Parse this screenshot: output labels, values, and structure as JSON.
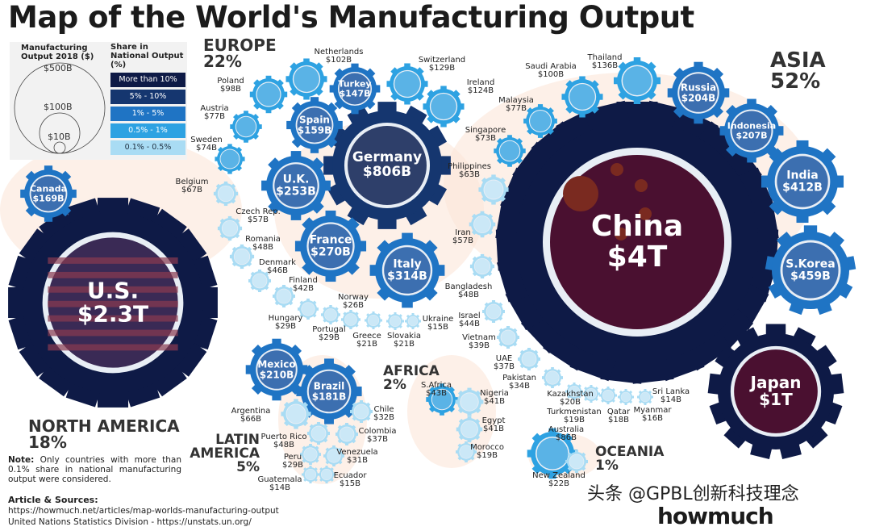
{
  "title": "Map of the World's Manufacturing Output",
  "legend": {
    "size_title": "Manufacturing Output 2018 ($)",
    "size_circles": [
      "$500B",
      "$100B",
      "$10B"
    ],
    "share_title": "Share in National Output (%)",
    "tiers": [
      {
        "label": "More than 10%",
        "color": "#0e1a46"
      },
      {
        "label": "5% - 10%",
        "color": "#15366f"
      },
      {
        "label": "1% - 5%",
        "color": "#1f74c4"
      },
      {
        "label": "0.5% - 1%",
        "color": "#2ea2e2"
      },
      {
        "label": "0.1% - 0.5%",
        "color": "#a9dcf4"
      }
    ]
  },
  "regions": [
    {
      "name": "EUROPE",
      "share": "22%"
    },
    {
      "name": "ASIA",
      "share": "52%"
    },
    {
      "name": "NORTH AMERICA",
      "share": "18%"
    },
    {
      "name": "LATIN AMERICA",
      "share": "5%"
    },
    {
      "name": "AFRICA",
      "share": "2%"
    },
    {
      "name": "OCEANIA",
      "share": "1%"
    }
  ],
  "countries": [
    {
      "name": "U.S.",
      "value": "$2.3T",
      "tier": 0
    },
    {
      "name": "China",
      "value": "$4T",
      "tier": 0
    },
    {
      "name": "Japan",
      "value": "$1T",
      "tier": 0
    },
    {
      "name": "Germany",
      "value": "$806B",
      "tier": 1
    },
    {
      "name": "Canada",
      "value": "$169B",
      "tier": 2
    },
    {
      "name": "Mexico",
      "value": "$210B",
      "tier": 2
    },
    {
      "name": "Brazil",
      "value": "$181B",
      "tier": 2
    },
    {
      "name": "U.K.",
      "value": "$253B",
      "tier": 2
    },
    {
      "name": "France",
      "value": "$270B",
      "tier": 2
    },
    {
      "name": "Italy",
      "value": "$314B",
      "tier": 2
    },
    {
      "name": "Spain",
      "value": "$159B",
      "tier": 2
    },
    {
      "name": "Turkey",
      "value": "$147B",
      "tier": 2
    },
    {
      "name": "Russia",
      "value": "$204B",
      "tier": 2
    },
    {
      "name": "Indonesia",
      "value": "$207B",
      "tier": 2
    },
    {
      "name": "India",
      "value": "$412B",
      "tier": 2
    },
    {
      "name": "S.Korea",
      "value": "$459B",
      "tier": 2
    },
    {
      "name": "Netherlands",
      "value": "$102B",
      "tier": 3
    },
    {
      "name": "Switzerland",
      "value": "$129B",
      "tier": 3
    },
    {
      "name": "Ireland",
      "value": "$124B",
      "tier": 3
    },
    {
      "name": "Poland",
      "value": "$98B",
      "tier": 3
    },
    {
      "name": "Austria",
      "value": "$77B",
      "tier": 3
    },
    {
      "name": "Sweden",
      "value": "$74B",
      "tier": 3
    },
    {
      "name": "Belgium",
      "value": "$67B",
      "tier": 4
    },
    {
      "name": "Czech Rep.",
      "value": "$57B",
      "tier": 4
    },
    {
      "name": "Romania",
      "value": "$48B",
      "tier": 4
    },
    {
      "name": "Denmark",
      "value": "$46B",
      "tier": 4
    },
    {
      "name": "Finland",
      "value": "$42B",
      "tier": 4
    },
    {
      "name": "Hungary",
      "value": "$29B",
      "tier": 4
    },
    {
      "name": "Norway",
      "value": "$26B",
      "tier": 4
    },
    {
      "name": "Portugal",
      "value": "$29B",
      "tier": 4
    },
    {
      "name": "Greece",
      "value": "$21B",
      "tier": 4
    },
    {
      "name": "Slovakia",
      "value": "$21B",
      "tier": 4
    },
    {
      "name": "Ukraine",
      "value": "$15B",
      "tier": 4
    },
    {
      "name": "Thailand",
      "value": "$136B",
      "tier": 3
    },
    {
      "name": "Saudi Arabia",
      "value": "$100B",
      "tier": 3
    },
    {
      "name": "Malaysia",
      "value": "$77B",
      "tier": 3
    },
    {
      "name": "Singapore",
      "value": "$73B",
      "tier": 3
    },
    {
      "name": "Philippines",
      "value": "$63B",
      "tier": 4
    },
    {
      "name": "Iran",
      "value": "$57B",
      "tier": 4
    },
    {
      "name": "Bangladesh",
      "value": "$48B",
      "tier": 4
    },
    {
      "name": "Israel",
      "value": "$44B",
      "tier": 4
    },
    {
      "name": "Vietnam",
      "value": "$39B",
      "tier": 4
    },
    {
      "name": "UAE",
      "value": "$37B",
      "tier": 4
    },
    {
      "name": "Pakistan",
      "value": "$34B",
      "tier": 4
    },
    {
      "name": "Kazakhstan",
      "value": "$20B",
      "tier": 4
    },
    {
      "name": "Turkmenistan",
      "value": "$19B",
      "tier": 4
    },
    {
      "name": "Qatar",
      "value": "$18B",
      "tier": 4
    },
    {
      "name": "Myanmar",
      "value": "$16B",
      "tier": 4
    },
    {
      "name": "Sri Lanka",
      "value": "$14B",
      "tier": 4
    },
    {
      "name": "S.Africa",
      "value": "$43B",
      "tier": 3
    },
    {
      "name": "Nigeria",
      "value": "$41B",
      "tier": 4
    },
    {
      "name": "Egypt",
      "value": "$41B",
      "tier": 4
    },
    {
      "name": "Morocco",
      "value": "$19B",
      "tier": 4
    },
    {
      "name": "Australia",
      "value": "$86B",
      "tier": 3
    },
    {
      "name": "New Zealand",
      "value": "$22B",
      "tier": 4
    },
    {
      "name": "Argentina",
      "value": "$66B",
      "tier": 4
    },
    {
      "name": "Chile",
      "value": "$32B",
      "tier": 4
    },
    {
      "name": "Puerto Rico",
      "value": "$48B",
      "tier": 4
    },
    {
      "name": "Colombia",
      "value": "$37B",
      "tier": 4
    },
    {
      "name": "Peru",
      "value": "$29B",
      "tier": 4
    },
    {
      "name": "Venezuela",
      "value": "$31B",
      "tier": 4
    },
    {
      "name": "Guatemala",
      "value": "$14B",
      "tier": 4
    },
    {
      "name": "Ecuador",
      "value": "$15B",
      "tier": 4
    }
  ],
  "note": {
    "label": "Note:",
    "text": "Only countries with more than 0.1% share in national manufacturing output were considered."
  },
  "sources": {
    "title": "Article & Sources:",
    "lines": [
      "https://howmuch.net/articles/map-worlds-manufacturing-output",
      "United Nations Statistics Division - https://unstats.un.org/"
    ]
  },
  "watermark": "头条 @GPBL创新科技理念",
  "logo": "howmuch"
}
